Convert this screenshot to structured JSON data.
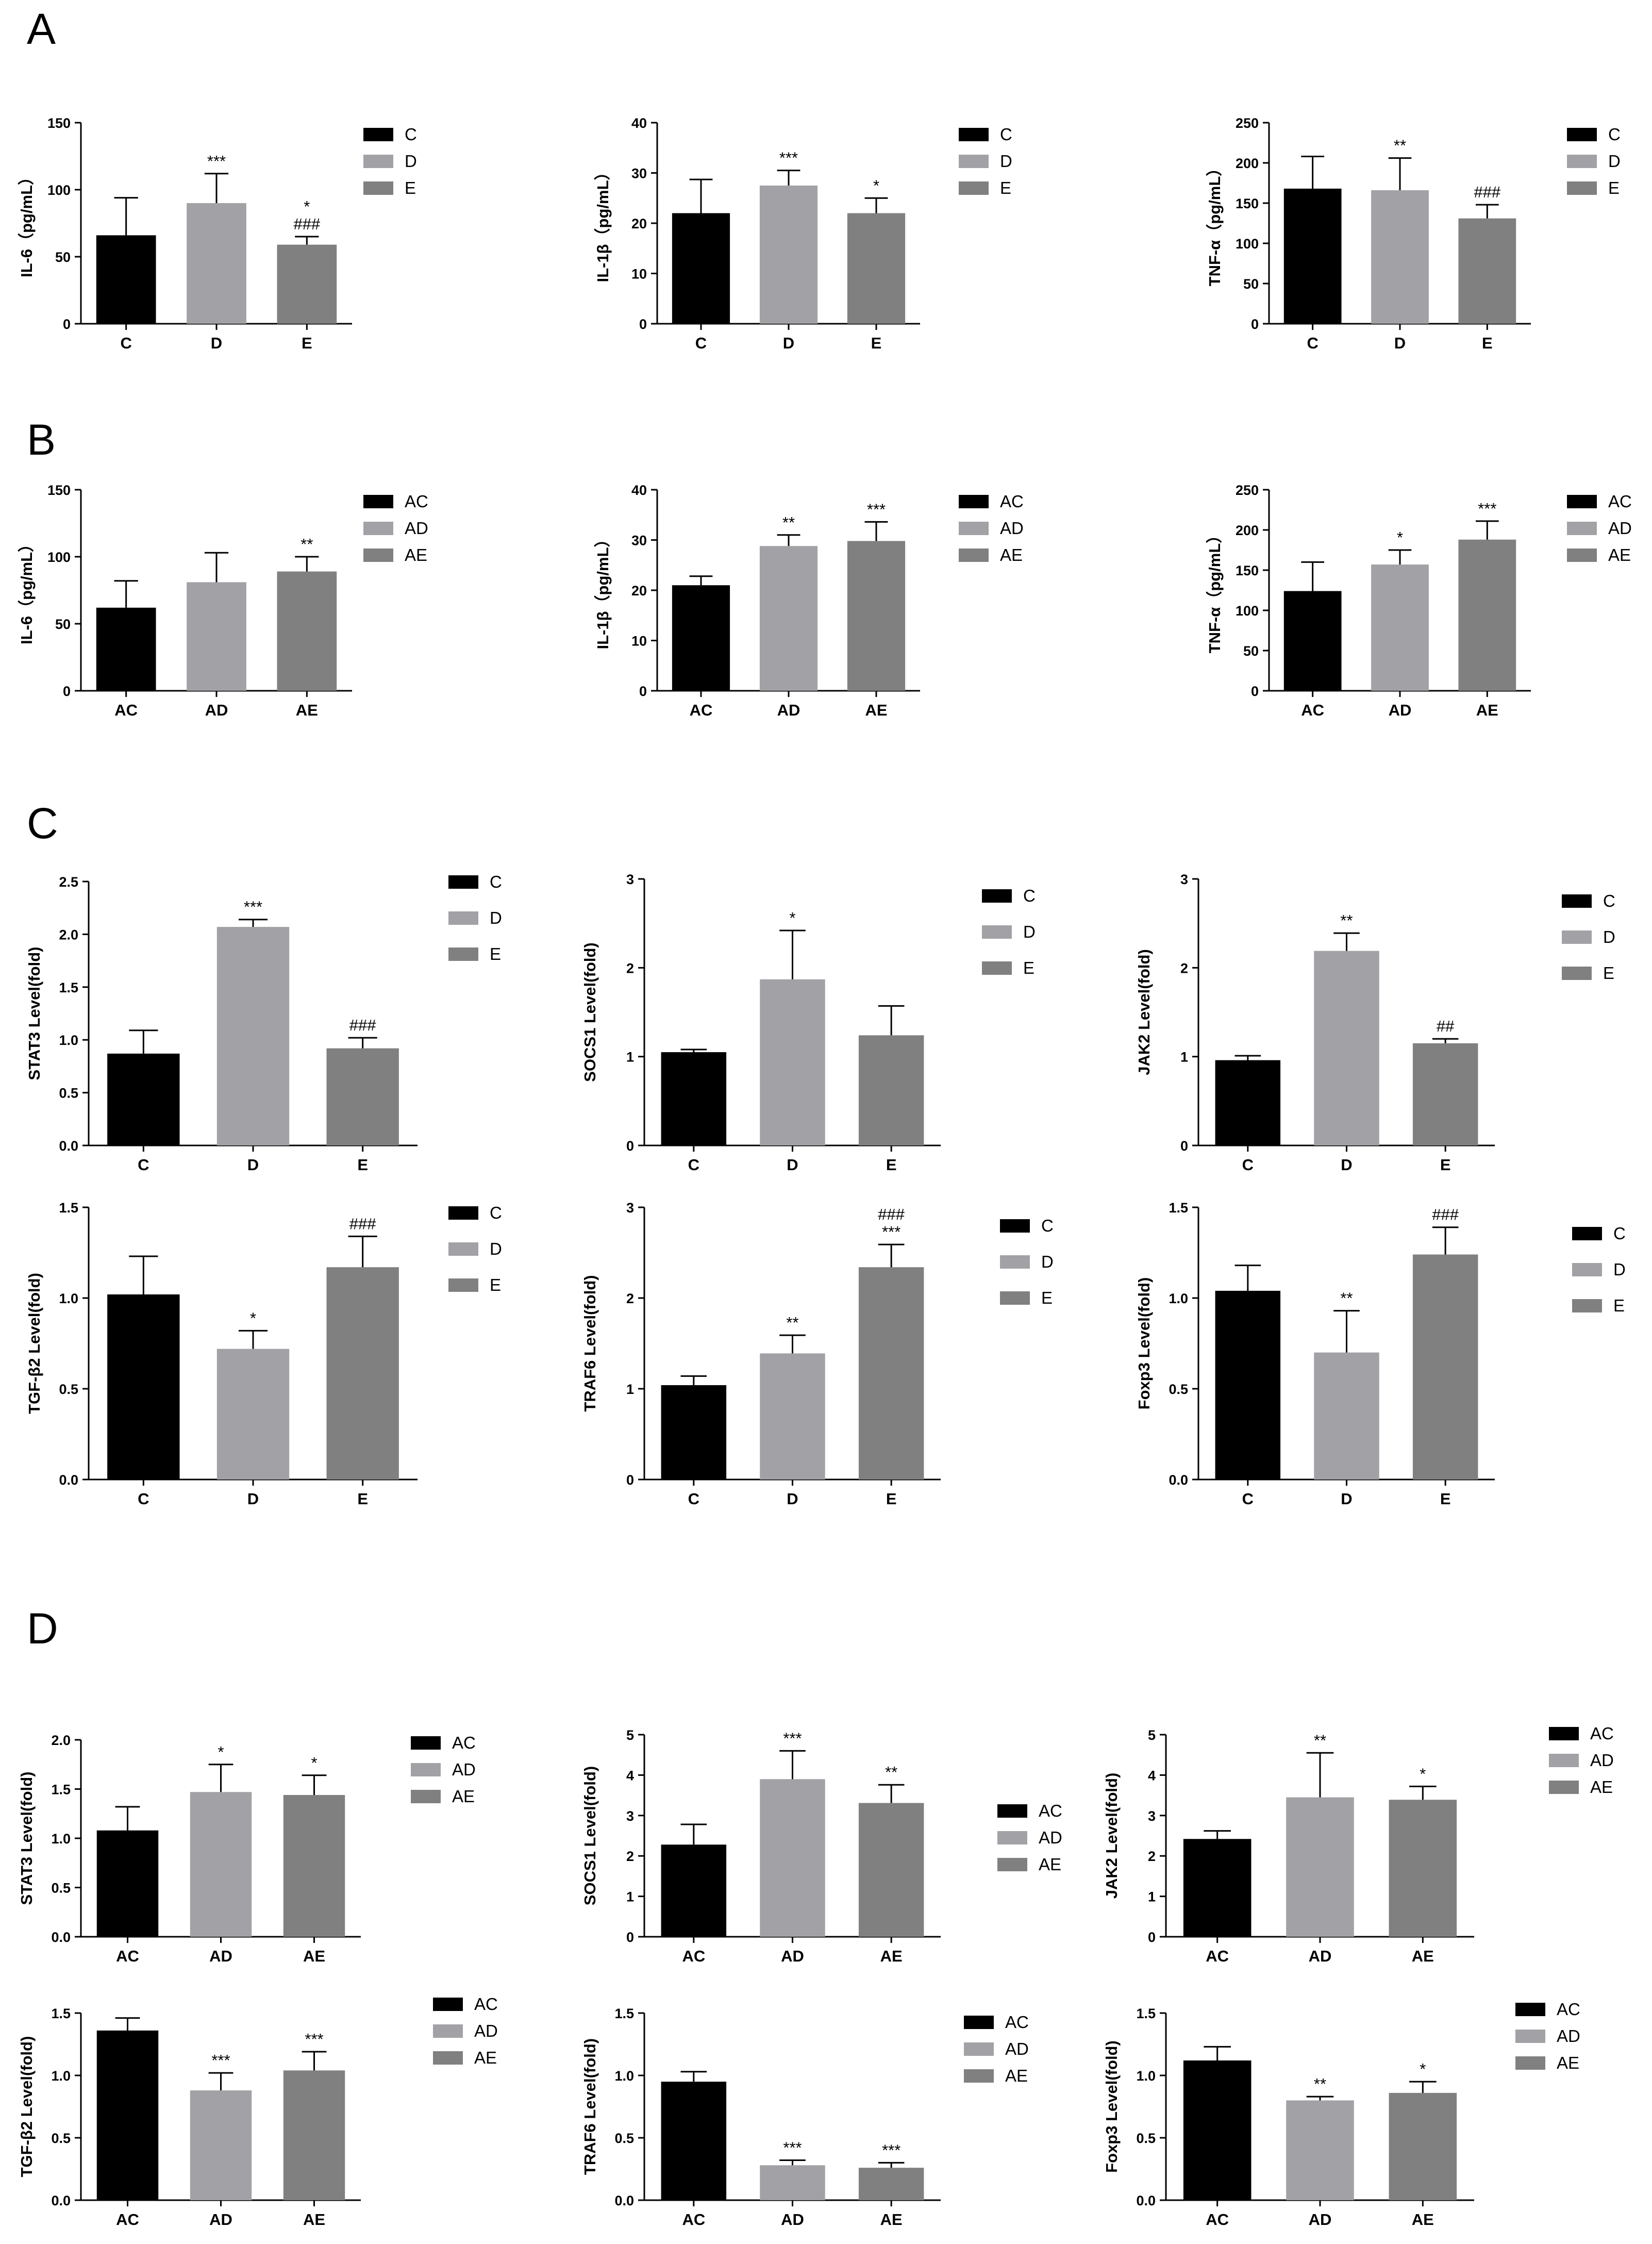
{
  "figure": {
    "panels": [
      "A",
      "B",
      "C",
      "D"
    ]
  },
  "colors": {
    "bar1": "#000000",
    "bar2": "#a2a2a6",
    "bar3": "#808080"
  },
  "chart_data": [
    {
      "id": "A1",
      "panel": "A",
      "type": "bar",
      "ylabel": "IL-6（pg/mL）",
      "categories": [
        "C",
        "D",
        "E"
      ],
      "values": [
        66,
        90,
        59
      ],
      "errors": [
        28,
        22,
        6
      ],
      "annotations": [
        "",
        "***",
        "*\n###"
      ],
      "ylim": [
        0,
        150
      ],
      "yticks": [
        "0",
        "50",
        "100",
        "150"
      ],
      "legend": [
        "C",
        "D",
        "E"
      ]
    },
    {
      "id": "A2",
      "panel": "A",
      "type": "bar",
      "ylabel": "IL-1β（pg/mL）",
      "categories": [
        "C",
        "D",
        "E"
      ],
      "values": [
        22,
        27.5,
        22
      ],
      "errors": [
        6.7,
        3,
        3
      ],
      "annotations": [
        "",
        "***",
        "*"
      ],
      "ylim": [
        0,
        40
      ],
      "yticks": [
        "0",
        "10",
        "20",
        "30",
        "40"
      ],
      "legend": [
        "C",
        "D",
        "E"
      ]
    },
    {
      "id": "A3",
      "panel": "A",
      "type": "bar",
      "ylabel": "TNF-α（pg/mL）",
      "categories": [
        "C",
        "D",
        "E"
      ],
      "values": [
        168,
        166,
        131
      ],
      "errors": [
        40,
        40,
        17
      ],
      "annotations": [
        "",
        "**",
        "###"
      ],
      "ylim": [
        0,
        250
      ],
      "yticks": [
        "0",
        "50",
        "100",
        "150",
        "200",
        "250"
      ],
      "legend": [
        "C",
        "D",
        "E"
      ]
    },
    {
      "id": "B1",
      "panel": "B",
      "type": "bar",
      "ylabel": "IL-6（pg/mL）",
      "categories": [
        "AC",
        "AD",
        "AE"
      ],
      "values": [
        62,
        81,
        89
      ],
      "errors": [
        20,
        22,
        11
      ],
      "annotations": [
        "",
        "",
        "**"
      ],
      "ylim": [
        0,
        150
      ],
      "yticks": [
        "0",
        "50",
        "100",
        "150"
      ],
      "legend": [
        "AC",
        "AD",
        "AE"
      ]
    },
    {
      "id": "B2",
      "panel": "B",
      "type": "bar",
      "ylabel": "IL-1β（pg/mL）",
      "categories": [
        "AC",
        "AD",
        "AE"
      ],
      "values": [
        21,
        28.8,
        29.8
      ],
      "errors": [
        1.8,
        2.2,
        3.8
      ],
      "annotations": [
        "",
        "**",
        "***"
      ],
      "ylim": [
        0,
        40
      ],
      "yticks": [
        "0",
        "10",
        "20",
        "30",
        "40"
      ],
      "legend": [
        "AC",
        "AD",
        "AE"
      ]
    },
    {
      "id": "B3",
      "panel": "B",
      "type": "bar",
      "ylabel": "TNF-α（pg/mL）",
      "categories": [
        "AC",
        "AD",
        "AE"
      ],
      "values": [
        124,
        157,
        188
      ],
      "errors": [
        36,
        18,
        23
      ],
      "annotations": [
        "",
        "*",
        "***"
      ],
      "ylim": [
        0,
        250
      ],
      "yticks": [
        "0",
        "50",
        "100",
        "150",
        "200",
        "250"
      ],
      "legend": [
        "AC",
        "AD",
        "AE"
      ]
    },
    {
      "id": "C1",
      "panel": "C",
      "type": "bar",
      "ylabel": "STAT3 Level(fold)",
      "categories": [
        "C",
        "D",
        "E"
      ],
      "values": [
        0.87,
        2.07,
        0.92
      ],
      "errors": [
        0.22,
        0.07,
        0.1
      ],
      "annotations": [
        "",
        "***",
        "###"
      ],
      "ylim": [
        0,
        2.5
      ],
      "yticks": [
        "0.0",
        "0.5",
        "1.0",
        "1.5",
        "2.0",
        "2.5"
      ],
      "legend": [
        "C",
        "D",
        "E"
      ]
    },
    {
      "id": "C2",
      "panel": "C",
      "type": "bar",
      "ylabel": "SOCS1 Level(fold)",
      "categories": [
        "C",
        "D",
        "E"
      ],
      "values": [
        1.05,
        1.87,
        1.24
      ],
      "errors": [
        0.03,
        0.55,
        0.33
      ],
      "annotations": [
        "",
        "*",
        ""
      ],
      "ylim": [
        0,
        3
      ],
      "yticks": [
        "0",
        "1",
        "2",
        "3"
      ],
      "legend": [
        "C",
        "D",
        "E"
      ]
    },
    {
      "id": "C3",
      "panel": "C",
      "type": "bar",
      "ylabel": "JAK2 Level(fold)",
      "categories": [
        "C",
        "D",
        "E"
      ],
      "values": [
        0.96,
        2.19,
        1.15
      ],
      "errors": [
        0.05,
        0.2,
        0.05
      ],
      "annotations": [
        "",
        "**",
        "##"
      ],
      "ylim": [
        0,
        3
      ],
      "yticks": [
        "0",
        "1",
        "2",
        "3"
      ],
      "legend": [
        "C",
        "D",
        "E"
      ]
    },
    {
      "id": "C4",
      "panel": "C",
      "type": "bar",
      "ylabel": "TGF-β2 Level(fold)",
      "categories": [
        "C",
        "D",
        "E"
      ],
      "values": [
        1.02,
        0.72,
        1.17
      ],
      "errors": [
        0.21,
        0.1,
        0.17
      ],
      "annotations": [
        "",
        "*",
        "###"
      ],
      "ylim": [
        0,
        1.5
      ],
      "yticks": [
        "0.0",
        "0.5",
        "1.0",
        "1.5"
      ],
      "legend": [
        "C",
        "D",
        "E"
      ]
    },
    {
      "id": "C5",
      "panel": "C",
      "type": "bar",
      "ylabel": "TRAF6 Level(fold)",
      "categories": [
        "C",
        "D",
        "E"
      ],
      "values": [
        1.04,
        1.39,
        2.34
      ],
      "errors": [
        0.1,
        0.2,
        0.25
      ],
      "annotations": [
        "",
        "**",
        "###\n***"
      ],
      "ylim": [
        0,
        3
      ],
      "yticks": [
        "0",
        "1",
        "2",
        "3"
      ],
      "legend": [
        "C",
        "D",
        "E"
      ]
    },
    {
      "id": "C6",
      "panel": "C",
      "type": "bar",
      "ylabel": "Foxp3 Level(fold)",
      "categories": [
        "C",
        "D",
        "E"
      ],
      "values": [
        1.04,
        0.7,
        1.24
      ],
      "errors": [
        0.14,
        0.23,
        0.15
      ],
      "annotations": [
        "",
        "**",
        "###"
      ],
      "ylim": [
        0,
        1.5
      ],
      "yticks": [
        "0.0",
        "0.5",
        "1.0",
        "1.5"
      ],
      "legend": [
        "C",
        "D",
        "E"
      ]
    },
    {
      "id": "D1",
      "panel": "D",
      "type": "bar",
      "ylabel": "STAT3 Level(fold)",
      "categories": [
        "AC",
        "AD",
        "AE"
      ],
      "values": [
        1.08,
        1.47,
        1.44
      ],
      "errors": [
        0.24,
        0.28,
        0.2
      ],
      "annotations": [
        "",
        "*",
        "*"
      ],
      "ylim": [
        0,
        2
      ],
      "yticks": [
        "0.0",
        "0.5",
        "1.0",
        "1.5",
        "2.0"
      ],
      "legend": [
        "AC",
        "AD",
        "AE"
      ]
    },
    {
      "id": "D2",
      "panel": "D",
      "type": "bar",
      "ylabel": "SOCS1 Level(fold)",
      "categories": [
        "AC",
        "AD",
        "AE"
      ],
      "values": [
        2.28,
        3.9,
        3.31
      ],
      "errors": [
        0.5,
        0.7,
        0.45
      ],
      "annotations": [
        "",
        "***",
        "**"
      ],
      "ylim": [
        0,
        5
      ],
      "yticks": [
        "0",
        "1",
        "2",
        "3",
        "4",
        "5"
      ],
      "legend": [
        "AC",
        "AD",
        "AE"
      ]
    },
    {
      "id": "D3",
      "panel": "D",
      "type": "bar",
      "ylabel": "JAK2 Level(fold)",
      "categories": [
        "AC",
        "AD",
        "AE"
      ],
      "values": [
        2.42,
        3.45,
        3.39
      ],
      "errors": [
        0.2,
        1.1,
        0.33
      ],
      "annotations": [
        "",
        "**",
        "*"
      ],
      "ylim": [
        0,
        5
      ],
      "yticks": [
        "0",
        "1",
        "2",
        "3",
        "4",
        "5"
      ],
      "legend": [
        "AC",
        "AD",
        "AE"
      ]
    },
    {
      "id": "D4",
      "panel": "D",
      "type": "bar",
      "ylabel": "TGF-β2 Level(fold)",
      "categories": [
        "AC",
        "AD",
        "AE"
      ],
      "values": [
        1.36,
        0.88,
        1.04
      ],
      "errors": [
        0.1,
        0.14,
        0.15
      ],
      "annotations": [
        "",
        "***",
        "***"
      ],
      "ylim": [
        0,
        1.5
      ],
      "yticks": [
        "0.0",
        "0.5",
        "1.0",
        "1.5"
      ],
      "legend": [
        "AC",
        "AD",
        "AE"
      ]
    },
    {
      "id": "D5",
      "panel": "D",
      "type": "bar",
      "ylabel": "TRAF6 Level(fold)",
      "categories": [
        "AC",
        "AD",
        "AE"
      ],
      "values": [
        0.95,
        0.28,
        0.26
      ],
      "errors": [
        0.08,
        0.04,
        0.04
      ],
      "annotations": [
        "",
        "***",
        "***"
      ],
      "ylim": [
        0,
        1.5
      ],
      "yticks": [
        "0.0",
        "0.5",
        "1.0",
        "1.5"
      ],
      "legend": [
        "AC",
        "AD",
        "AE"
      ]
    },
    {
      "id": "D6",
      "panel": "D",
      "type": "bar",
      "ylabel": "Foxp3 Level(fold)",
      "categories": [
        "AC",
        "AD",
        "AE"
      ],
      "values": [
        1.12,
        0.8,
        0.86
      ],
      "errors": [
        0.11,
        0.03,
        0.09
      ],
      "annotations": [
        "",
        "**",
        "*"
      ],
      "ylim": [
        0,
        1.5
      ],
      "yticks": [
        "0.0",
        "0.5",
        "1.0",
        "1.5"
      ],
      "legend": [
        "AC",
        "AD",
        "AE"
      ]
    }
  ]
}
